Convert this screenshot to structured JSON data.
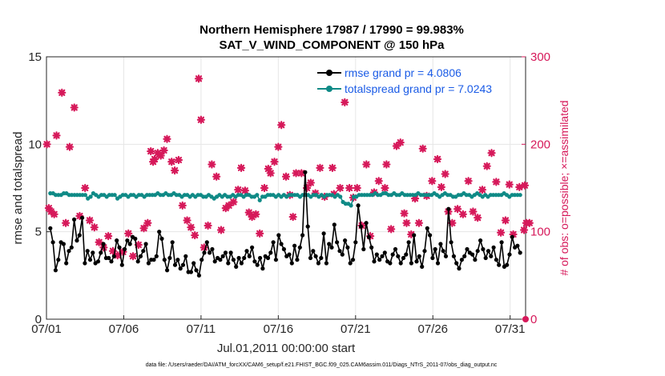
{
  "chart_data": {
    "type": "line",
    "title": [
      "Northern Hemisphere 17987 / 17990 = 99.983%",
      "SAT_V_WIND_COMPONENT @ 150 hPa"
    ],
    "xlabel": "Jul.01,2011 00:00:00 start",
    "ylabel": "rmse and totalspread",
    "y2label": "# of obs: o=possible; ×=assimilated",
    "footnote": "data file: /Users/raeder/DAI/ATM_forcXX/CAM6_setup/f.e21.FHIST_BGC.f09_025.CAM6assim.011/Diags_NTrS_2011-07/obs_diag_output.nc",
    "x_tick_labels": [
      "07/01",
      "07/06",
      "07/11",
      "07/16",
      "07/21",
      "07/26",
      "07/31"
    ],
    "x_tick_days": [
      0,
      5,
      10,
      15,
      20,
      25,
      30
    ],
    "xlim": [
      0,
      31
    ],
    "ylim": [
      0,
      15
    ],
    "y_ticks": [
      0,
      5,
      10,
      15
    ],
    "y2lim": [
      0,
      300
    ],
    "y2_ticks": [
      0,
      100,
      200,
      300
    ],
    "grid": true,
    "legend": {
      "placement": "top-right",
      "entries": [
        "rmse grand pr = 4.0806",
        "totalspread grand pr = 7.0243"
      ]
    },
    "colors": {
      "rmse": "#000000",
      "spread": "#0f8a86",
      "obs": "#d6195a",
      "legend_text": "#1a5be6"
    },
    "series": [
      {
        "name": "rmse",
        "axis": "left",
        "values": [
          5.2,
          4.4,
          2.8,
          3.4,
          4.4,
          4.3,
          3.2,
          3.9,
          4.1,
          5.7,
          4.5,
          4.8,
          5.8,
          3.2,
          3.9,
          3.4,
          3.8,
          3.2,
          3.3,
          3.8,
          4.3,
          3.5,
          3.5,
          3.3,
          3.6,
          4.5,
          4.1,
          3.1,
          4.0,
          4.5,
          4.3,
          4.7,
          4.6,
          3.3,
          3.6,
          3.9,
          4.3,
          3.2,
          3.4,
          3.4,
          3.6,
          5.0,
          4.6,
          3.4,
          2.8,
          3.5,
          4.4,
          3.1,
          3.4,
          2.9,
          3.1,
          3.6,
          2.7,
          2.7,
          3.2,
          2.8,
          2.5,
          3.4,
          3.8,
          4.4,
          3.8,
          4.0,
          3.3,
          3.5,
          3.4,
          3.6,
          3.8,
          3.2,
          3.8,
          3.4,
          3.0,
          3.5,
          3.2,
          3.5,
          3.9,
          3.6,
          4.1,
          3.3,
          3.1,
          3.5,
          2.9,
          3.6,
          3.5,
          3.8,
          4.4,
          3.4,
          4.8,
          4.3,
          4.0,
          3.6,
          3.7,
          3.2,
          4.2,
          3.4,
          4.1,
          4.8,
          8.4,
          5.3,
          3.5,
          3.9,
          3.6,
          3.2,
          3.5,
          4.9,
          3.2,
          4.3,
          4.1,
          5.4,
          4.4,
          3.9,
          3.7,
          4.5,
          4.1,
          3.2,
          3.4,
          4.4,
          6.5,
          5.3,
          4.0,
          5.5,
          4.7,
          4.1,
          3.3,
          3.7,
          3.4,
          3.6,
          3.8,
          3.3,
          3.2,
          3.7,
          4.0,
          3.6,
          3.2,
          3.5,
          3.7,
          4.4,
          3.2,
          4.8,
          3.3,
          3.6,
          3.0,
          3.9,
          5.2,
          4.8,
          3.5,
          4.0,
          3.2,
          4.3,
          3.9,
          3.6,
          6.3,
          4.4,
          3.6,
          3.2,
          2.9,
          3.4,
          3.6,
          4.0,
          3.8,
          3.7,
          3.4,
          3.9,
          4.5,
          4.0,
          3.5,
          3.9,
          3.6,
          4.1,
          3.4,
          3.1,
          4.4,
          3.0,
          3.1,
          3.7,
          4.7,
          4.1,
          4.2,
          3.8
        ]
      },
      {
        "name": "totalspread",
        "axis": "left",
        "values": [
          7.2,
          7.2,
          7.1,
          7.1,
          7.1,
          7.2,
          7.2,
          7.1,
          7.1,
          7.1,
          7.1,
          7.1,
          7.1,
          7.1,
          6.9,
          7.0,
          7.2,
          7.1,
          7.0,
          7.1,
          7.1,
          7.0,
          7.1,
          7.1,
          7.1,
          6.9,
          7.0,
          7.1,
          7.1,
          7.0,
          7.1,
          7.1,
          7.0,
          7.1,
          7.1,
          7.0,
          7.1,
          7.1,
          7.1,
          7.1,
          7.2,
          7.1,
          7.1,
          7.2,
          7.1,
          7.1,
          7.2,
          7.1,
          7.1,
          7.0,
          7.1,
          7.1,
          7.0,
          7.1,
          7.0,
          7.1,
          7.1,
          7.0,
          7.0,
          7.1,
          7.0,
          6.9,
          7.0,
          7.1,
          7.0,
          7.1,
          7.0,
          7.0,
          7.1,
          7.0,
          7.1,
          7.1,
          7.0,
          7.1,
          7.1,
          7.0,
          7.0,
          7.1,
          6.8,
          7.0,
          7.0,
          7.1,
          7.1,
          7.1,
          7.0,
          7.1,
          7.0,
          7.1,
          7.0,
          7.1,
          7.1,
          7.1,
          7.1,
          7.0,
          7.1,
          7.1,
          7.1,
          7.0,
          7.1,
          7.1,
          7.0,
          7.1,
          7.0,
          7.1,
          7.1,
          7.1,
          7.0,
          7.1,
          7.0,
          6.7,
          6.6,
          6.6,
          6.5,
          7.0,
          7.0,
          7.1,
          7.1,
          7.1,
          7.1,
          7.1,
          7.1,
          7.2,
          7.1,
          7.1,
          7.2,
          7.2,
          7.1,
          7.1,
          7.2,
          7.1,
          7.1,
          7.2,
          7.1,
          7.1,
          7.1,
          7.1,
          7.1,
          7.2,
          7.1,
          7.1,
          7.1,
          7.1,
          7.1,
          7.2,
          7.1,
          7.0,
          7.1,
          7.2,
          7.1,
          7.1,
          7.0,
          7.0,
          7.1,
          7.1,
          7.2,
          7.1,
          7.1,
          7.0,
          7.1,
          7.2,
          7.1,
          7.0,
          7.1,
          7.0,
          7.1,
          7.1,
          7.1,
          7.1,
          7.1,
          7.2,
          7.1,
          7.0,
          7.1,
          7.1,
          7.1,
          7.1
        ]
      },
      {
        "name": "obs_assimilated",
        "axis": "right",
        "points": [
          [
            0.03,
            200
          ],
          [
            0.15,
            127
          ],
          [
            0.3,
            123
          ],
          [
            0.5,
            120
          ],
          [
            0.65,
            210
          ],
          [
            1.0,
            259
          ],
          [
            1.25,
            110
          ],
          [
            1.5,
            197
          ],
          [
            1.8,
            242
          ],
          [
            2.15,
            118
          ],
          [
            2.5,
            150
          ],
          [
            2.8,
            113
          ],
          [
            3.1,
            105
          ],
          [
            3.4,
            88
          ],
          [
            3.7,
            82
          ],
          [
            4.0,
            95
          ],
          [
            4.3,
            78
          ],
          [
            4.6,
            73
          ],
          [
            4.95,
            77
          ],
          [
            5.3,
            98
          ],
          [
            5.6,
            72
          ],
          [
            5.95,
            85
          ],
          [
            6.3,
            104
          ],
          [
            6.55,
            110
          ],
          [
            6.75,
            192
          ],
          [
            6.9,
            180
          ],
          [
            7.0,
            183
          ],
          [
            7.2,
            190
          ],
          [
            7.4,
            187
          ],
          [
            7.6,
            193
          ],
          [
            7.8,
            206
          ],
          [
            8.1,
            180
          ],
          [
            8.3,
            170
          ],
          [
            8.55,
            182
          ],
          [
            8.8,
            130
          ],
          [
            9.1,
            113
          ],
          [
            9.35,
            105
          ],
          [
            9.6,
            96
          ],
          [
            9.85,
            275
          ],
          [
            10.0,
            228
          ],
          [
            10.2,
            82
          ],
          [
            10.45,
            107
          ],
          [
            10.7,
            177
          ],
          [
            11.0,
            163
          ],
          [
            11.3,
            102
          ],
          [
            11.6,
            127
          ],
          [
            11.8,
            130
          ],
          [
            12.1,
            134
          ],
          [
            12.4,
            148
          ],
          [
            12.6,
            173
          ],
          [
            12.85,
            147
          ],
          [
            13.1,
            122
          ],
          [
            13.3,
            117
          ],
          [
            13.55,
            120
          ],
          [
            13.8,
            98
          ],
          [
            14.1,
            150
          ],
          [
            14.35,
            172
          ],
          [
            14.5,
            167
          ],
          [
            14.75,
            180
          ],
          [
            15.0,
            197
          ],
          [
            15.2,
            222
          ],
          [
            15.5,
            163
          ],
          [
            15.75,
            142
          ],
          [
            15.95,
            117
          ],
          [
            16.15,
            167
          ],
          [
            16.5,
            167
          ],
          [
            16.85,
            150
          ],
          [
            17.1,
            156
          ],
          [
            17.4,
            144
          ],
          [
            17.7,
            173
          ],
          [
            18.0,
            140
          ],
          [
            18.5,
            173
          ],
          [
            18.6,
            143
          ],
          [
            19.0,
            150
          ],
          [
            19.3,
            248
          ],
          [
            19.6,
            150
          ],
          [
            19.85,
            139
          ],
          [
            20.1,
            150
          ],
          [
            20.4,
            107
          ],
          [
            20.7,
            177
          ],
          [
            20.95,
            95
          ],
          [
            21.2,
            145
          ],
          [
            21.5,
            158
          ],
          [
            21.9,
            150
          ],
          [
            22.0,
            177
          ],
          [
            22.3,
            103
          ],
          [
            22.65,
            198
          ],
          [
            22.9,
            202
          ],
          [
            23.15,
            121
          ],
          [
            23.3,
            110
          ],
          [
            23.6,
            97
          ],
          [
            23.85,
            138
          ],
          [
            24.1,
            110
          ],
          [
            24.35,
            195
          ],
          [
            24.6,
            141
          ],
          [
            24.95,
            158
          ],
          [
            25.3,
            183
          ],
          [
            25.55,
            151
          ],
          [
            25.8,
            166
          ],
          [
            26.0,
            123
          ],
          [
            26.25,
            110
          ],
          [
            26.6,
            126
          ],
          [
            26.95,
            120
          ],
          [
            27.3,
            158
          ],
          [
            27.6,
            123
          ],
          [
            27.9,
            116
          ],
          [
            28.2,
            148
          ],
          [
            28.5,
            175
          ],
          [
            28.8,
            190
          ],
          [
            29.1,
            157
          ],
          [
            29.4,
            99
          ],
          [
            29.7,
            113
          ],
          [
            29.95,
            154
          ],
          [
            30.2,
            97
          ],
          [
            30.6,
            151
          ],
          [
            30.9,
            102
          ],
          [
            30.95,
            153
          ],
          [
            31.05,
            110
          ],
          [
            31.25,
            110
          ]
        ]
      }
    ]
  }
}
